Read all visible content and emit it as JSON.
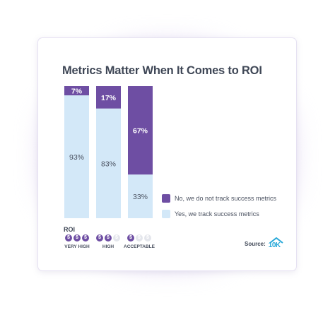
{
  "chart_data": {
    "type": "bar",
    "stacked": true,
    "title": "Metrics Matter When It Comes to ROI",
    "categories": [
      "VERY HIGH",
      "HIGH",
      "ACCEPTABLE"
    ],
    "series": [
      {
        "name": "No, we do not track success metrics",
        "values": [
          7,
          17,
          67
        ],
        "labels": [
          "7%",
          "17%",
          "67%"
        ],
        "color": "#6e4ea3"
      },
      {
        "name": "Yes, we track success metrics",
        "values": [
          93,
          83,
          33
        ],
        "labels": [
          "93%",
          "83%",
          "33%"
        ],
        "color": "#d3e8f8"
      }
    ],
    "ylim": [
      0,
      100
    ],
    "grid": false,
    "legend_position": "bottom-right"
  },
  "roi": {
    "label": "ROI",
    "groups": [
      {
        "name": "VERY HIGH",
        "coins": [
          "$",
          "$",
          "$"
        ],
        "filled": 3
      },
      {
        "name": "HIGH",
        "coins": [
          "$",
          "$",
          "$"
        ],
        "filled": 2
      },
      {
        "name": "ACCEPTABLE",
        "coins": [
          "$",
          "$",
          "$"
        ],
        "filled": 1
      }
    ]
  },
  "source": {
    "label": "Source:",
    "logo_text": "10K",
    "logo_icon": "house-icon"
  }
}
